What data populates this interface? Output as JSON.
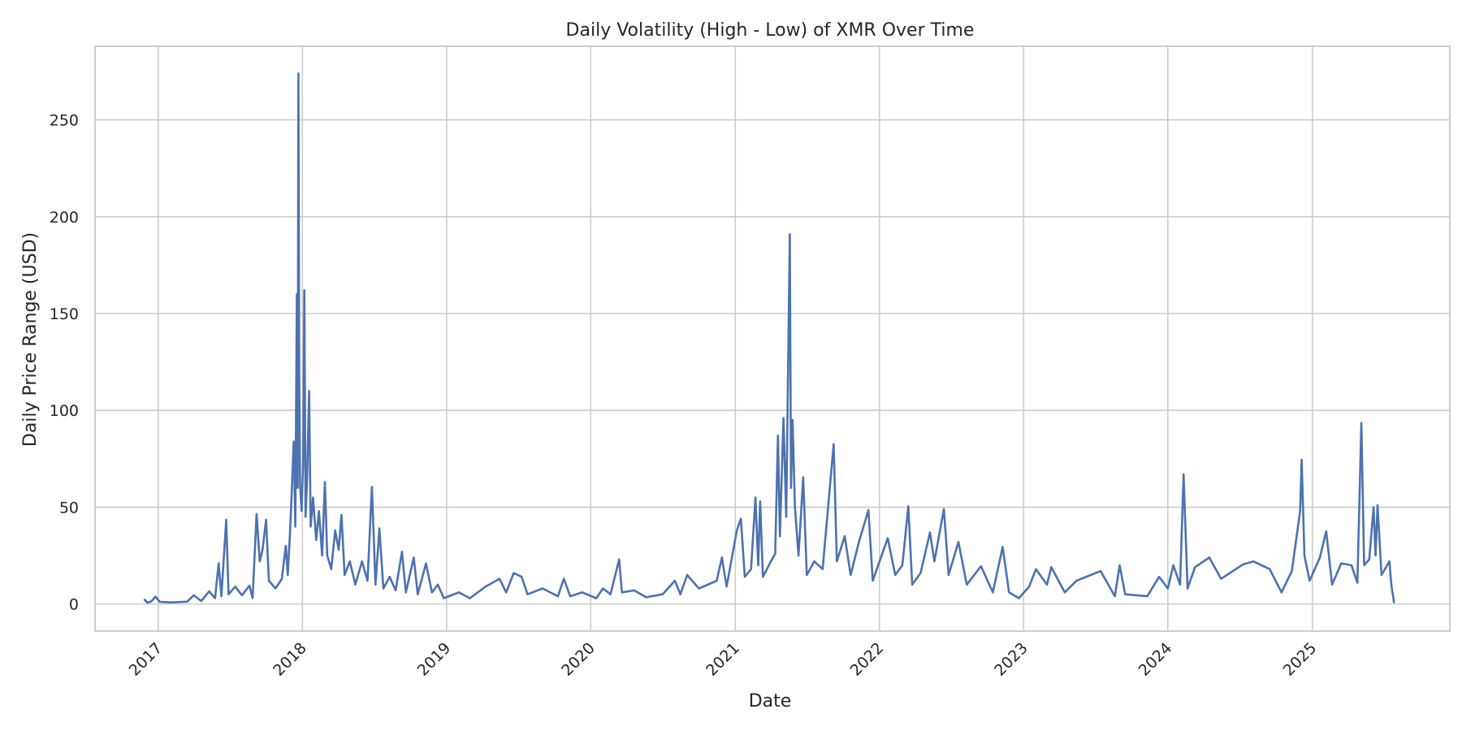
{
  "chart_data": {
    "type": "line",
    "title": "Daily Volatility (High - Low) of XMR Over Time",
    "xlabel": "Date",
    "ylabel": "Daily Price Range (USD)",
    "x_ticks": [
      "2017",
      "2018",
      "2019",
      "2020",
      "2021",
      "2022",
      "2023",
      "2024",
      "2025"
    ],
    "y_ticks": [
      0,
      50,
      100,
      150,
      200,
      250
    ],
    "xlim": [
      "2016-07-25",
      "2025-12-15"
    ],
    "ylim": [
      -14,
      288
    ],
    "grid": true,
    "legend": "none",
    "colors": {
      "line": "#4c72b0",
      "grid": "#cccccc",
      "text": "#262626"
    },
    "series": [
      {
        "values": [
          [
            "2016-11-26",
            2.5
          ],
          [
            "2016-12-05",
            0.6
          ],
          [
            "2016-12-15",
            1.4
          ],
          [
            "2016-12-25",
            3.8
          ],
          [
            "2017-01-05",
            1.1
          ],
          [
            "2017-02-01",
            0.8
          ],
          [
            "2017-03-15",
            1.2
          ],
          [
            "2017-04-01",
            4.5
          ],
          [
            "2017-04-20",
            1.5
          ],
          [
            "2017-05-10",
            6.5
          ],
          [
            "2017-05-25",
            3.0
          ],
          [
            "2017-06-03",
            21.0
          ],
          [
            "2017-06-10",
            4.0
          ],
          [
            "2017-06-22",
            43.5
          ],
          [
            "2017-06-28",
            5.0
          ],
          [
            "2017-07-15",
            9.0
          ],
          [
            "2017-08-01",
            4.5
          ],
          [
            "2017-08-20",
            9.5
          ],
          [
            "2017-08-28",
            3.0
          ],
          [
            "2017-09-07",
            46.5
          ],
          [
            "2017-09-15",
            22.0
          ],
          [
            "2017-09-22",
            28.0
          ],
          [
            "2017-10-01",
            43.5
          ],
          [
            "2017-10-08",
            12.0
          ],
          [
            "2017-10-25",
            8.0
          ],
          [
            "2017-11-10",
            13.0
          ],
          [
            "2017-11-20",
            30.0
          ],
          [
            "2017-11-25",
            15.0
          ],
          [
            "2017-12-01",
            38.0
          ],
          [
            "2017-12-05",
            58.0
          ],
          [
            "2017-12-10",
            84.0
          ],
          [
            "2017-12-14",
            40.0
          ],
          [
            "2017-12-18",
            160.0
          ],
          [
            "2017-12-20",
            60.0
          ],
          [
            "2017-12-22",
            274.0
          ],
          [
            "2017-12-24",
            120.0
          ],
          [
            "2017-12-26",
            62.0
          ],
          [
            "2017-12-30",
            48.0
          ],
          [
            "2018-01-03",
            75.0
          ],
          [
            "2018-01-06",
            162.0
          ],
          [
            "2018-01-09",
            45.0
          ],
          [
            "2018-01-13",
            65.0
          ],
          [
            "2018-01-18",
            110.0
          ],
          [
            "2018-01-22",
            40.0
          ],
          [
            "2018-01-28",
            55.0
          ],
          [
            "2018-02-05",
            33.0
          ],
          [
            "2018-02-12",
            48.0
          ],
          [
            "2018-02-20",
            25.0
          ],
          [
            "2018-02-27",
            63.0
          ],
          [
            "2018-03-05",
            25.0
          ],
          [
            "2018-03-15",
            18.0
          ],
          [
            "2018-03-25",
            38.0
          ],
          [
            "2018-04-03",
            28.0
          ],
          [
            "2018-04-10",
            46.0
          ],
          [
            "2018-04-18",
            15.0
          ],
          [
            "2018-05-01",
            22.0
          ],
          [
            "2018-05-15",
            10.0
          ],
          [
            "2018-06-01",
            22.0
          ],
          [
            "2018-06-15",
            12.0
          ],
          [
            "2018-06-26",
            60.5
          ],
          [
            "2018-07-05",
            10.0
          ],
          [
            "2018-07-15",
            39.0
          ],
          [
            "2018-07-25",
            8.0
          ],
          [
            "2018-08-10",
            14.0
          ],
          [
            "2018-08-25",
            7.0
          ],
          [
            "2018-09-10",
            27.0
          ],
          [
            "2018-09-20",
            6.0
          ],
          [
            "2018-10-10",
            24.0
          ],
          [
            "2018-10-20",
            5.0
          ],
          [
            "2018-11-10",
            21.0
          ],
          [
            "2018-11-25",
            6.0
          ],
          [
            "2018-12-10",
            10.0
          ],
          [
            "2018-12-25",
            3.0
          ],
          [
            "2019-02-01",
            6.0
          ],
          [
            "2019-03-01",
            3.0
          ],
          [
            "2019-04-10",
            9.0
          ],
          [
            "2019-05-15",
            13.0
          ],
          [
            "2019-06-01",
            6.0
          ],
          [
            "2019-06-20",
            16.0
          ],
          [
            "2019-07-10",
            14.0
          ],
          [
            "2019-07-25",
            5.0
          ],
          [
            "2019-09-01",
            8.0
          ],
          [
            "2019-10-10",
            4.0
          ],
          [
            "2019-10-25",
            13.0
          ],
          [
            "2019-11-10",
            4.0
          ],
          [
            "2019-12-10",
            6.0
          ],
          [
            "2020-01-15",
            3.0
          ],
          [
            "2020-02-01",
            8.0
          ],
          [
            "2020-02-20",
            5.0
          ],
          [
            "2020-03-13",
            23.0
          ],
          [
            "2020-03-20",
            6.0
          ],
          [
            "2020-04-20",
            7.0
          ],
          [
            "2020-05-20",
            3.5
          ],
          [
            "2020-07-01",
            5.0
          ],
          [
            "2020-08-01",
            12.0
          ],
          [
            "2020-08-15",
            5.0
          ],
          [
            "2020-09-01",
            15.0
          ],
          [
            "2020-10-01",
            8.0
          ],
          [
            "2020-11-15",
            12.0
          ],
          [
            "2020-11-28",
            24.0
          ],
          [
            "2020-12-10",
            9.0
          ],
          [
            "2021-01-05",
            38.0
          ],
          [
            "2021-01-15",
            44.0
          ],
          [
            "2021-01-25",
            14.0
          ],
          [
            "2021-02-10",
            18.0
          ],
          [
            "2021-02-21",
            55.0
          ],
          [
            "2021-02-28",
            20.0
          ],
          [
            "2021-03-05",
            53.0
          ],
          [
            "2021-03-12",
            14.0
          ],
          [
            "2021-04-01",
            22.0
          ],
          [
            "2021-04-12",
            26.0
          ],
          [
            "2021-04-19",
            87.0
          ],
          [
            "2021-04-24",
            35.0
          ],
          [
            "2021-05-03",
            96.0
          ],
          [
            "2021-05-10",
            45.0
          ],
          [
            "2021-05-19",
            191.0
          ],
          [
            "2021-05-22",
            60.0
          ],
          [
            "2021-05-26",
            95.0
          ],
          [
            "2021-06-01",
            50.0
          ],
          [
            "2021-06-10",
            25.0
          ],
          [
            "2021-06-22",
            65.5
          ],
          [
            "2021-07-01",
            15.0
          ],
          [
            "2021-07-20",
            22.0
          ],
          [
            "2021-08-10",
            18.0
          ],
          [
            "2021-09-07",
            82.5
          ],
          [
            "2021-09-15",
            22.0
          ],
          [
            "2021-10-05",
            35.0
          ],
          [
            "2021-10-20",
            15.0
          ],
          [
            "2021-11-10",
            32.0
          ],
          [
            "2021-12-04",
            48.5
          ],
          [
            "2021-12-15",
            12.0
          ],
          [
            "2022-01-22",
            34.0
          ],
          [
            "2022-02-10",
            15.0
          ],
          [
            "2022-02-28",
            20.0
          ],
          [
            "2022-03-15",
            50.5
          ],
          [
            "2022-03-25",
            10.0
          ],
          [
            "2022-04-15",
            16.0
          ],
          [
            "2022-05-09",
            37.0
          ],
          [
            "2022-05-20",
            22.0
          ],
          [
            "2022-06-13",
            49.0
          ],
          [
            "2022-06-25",
            15.0
          ],
          [
            "2022-07-20",
            32.0
          ],
          [
            "2022-08-10",
            10.0
          ],
          [
            "2022-09-15",
            19.5
          ],
          [
            "2022-10-15",
            6.0
          ],
          [
            "2022-11-09",
            29.5
          ],
          [
            "2022-11-25",
            6.0
          ],
          [
            "2022-12-20",
            3.0
          ],
          [
            "2023-01-15",
            9.0
          ],
          [
            "2023-02-01",
            18.0
          ],
          [
            "2023-03-01",
            10.0
          ],
          [
            "2023-03-12",
            19.0
          ],
          [
            "2023-04-15",
            6.0
          ],
          [
            "2023-05-15",
            12.0
          ],
          [
            "2023-07-15",
            17.0
          ],
          [
            "2023-08-20",
            4.0
          ],
          [
            "2023-09-01",
            20.0
          ],
          [
            "2023-09-15",
            5.0
          ],
          [
            "2023-11-10",
            4.0
          ],
          [
            "2023-12-10",
            14.0
          ],
          [
            "2024-01-01",
            8.0
          ],
          [
            "2024-01-15",
            20.0
          ],
          [
            "2024-02-01",
            10.0
          ],
          [
            "2024-02-10",
            67.0
          ],
          [
            "2024-02-20",
            8.0
          ],
          [
            "2024-03-10",
            19.0
          ],
          [
            "2024-04-15",
            24.0
          ],
          [
            "2024-05-15",
            13.0
          ],
          [
            "2024-07-10",
            20.5
          ],
          [
            "2024-08-05",
            22.0
          ],
          [
            "2024-09-15",
            18.0
          ],
          [
            "2024-10-15",
            6.0
          ],
          [
            "2024-11-10",
            17.0
          ],
          [
            "2024-12-01",
            48.0
          ],
          [
            "2024-12-05",
            74.5
          ],
          [
            "2024-12-12",
            25.0
          ],
          [
            "2024-12-25",
            12.0
          ],
          [
            "2025-01-20",
            24.0
          ],
          [
            "2025-02-05",
            37.5
          ],
          [
            "2025-02-20",
            10.0
          ],
          [
            "2025-03-15",
            21.0
          ],
          [
            "2025-04-10",
            20.0
          ],
          [
            "2025-04-25",
            11.0
          ],
          [
            "2025-05-05",
            93.5
          ],
          [
            "2025-05-12",
            20.0
          ],
          [
            "2025-05-25",
            23.0
          ],
          [
            "2025-06-05",
            50.0
          ],
          [
            "2025-06-10",
            25.0
          ],
          [
            "2025-06-15",
            51.0
          ],
          [
            "2025-06-25",
            15.0
          ],
          [
            "2025-07-15",
            22.0
          ],
          [
            "2025-07-20",
            10.0
          ],
          [
            "2025-07-27",
            0.5
          ]
        ]
      }
    ]
  }
}
